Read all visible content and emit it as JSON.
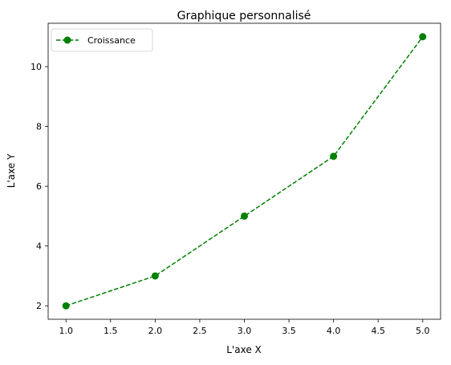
{
  "chart_data": {
    "type": "line",
    "title": "Graphique personnalisé",
    "xlabel": "L'axe X",
    "ylabel": "L'axe Y",
    "xlim": [
      0.8,
      5.2
    ],
    "ylim": [
      1.55,
      11.45
    ],
    "x_ticks": [
      "1.0",
      "1.5",
      "2.0",
      "2.5",
      "3.0",
      "3.5",
      "4.0",
      "4.5",
      "5.0"
    ],
    "y_ticks": [
      "2",
      "4",
      "6",
      "8",
      "10"
    ],
    "grid": false,
    "legend_position": "top-left",
    "series": [
      {
        "name": "Croissance",
        "x": [
          1,
          2,
          3,
          4,
          5
        ],
        "y": [
          2,
          3,
          5,
          7,
          11
        ],
        "color": "#008000",
        "line_style": "dashed",
        "marker": "circle"
      }
    ]
  }
}
